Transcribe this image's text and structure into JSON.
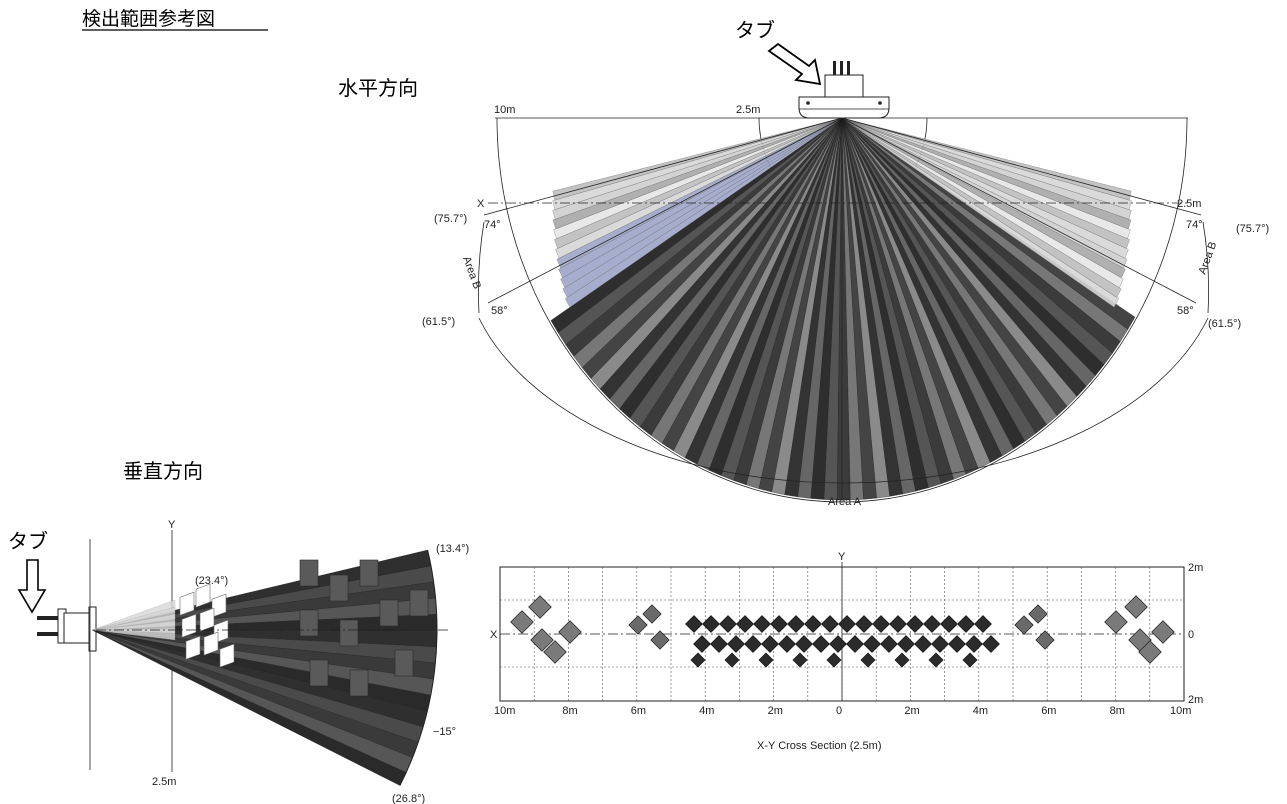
{
  "title": "検出範囲参考図",
  "horizontal": {
    "heading": "水平方向",
    "tab_label": "タブ",
    "range_far": "10m",
    "range_near": "2.5m",
    "range_near_right": "2.5m",
    "x_label": "X",
    "angle_74": "74°",
    "angle_757": "(75.7°)",
    "angle_58": "58°",
    "angle_615": "(61.5°)",
    "area_a": "Area A",
    "area_b": "Area B"
  },
  "vertical": {
    "heading": "垂直方向",
    "tab_label": "タブ",
    "y_label": "Y",
    "x_label": "X",
    "distance": "2.5m",
    "angle_134": "(13.4°)",
    "angle_234": "(23.4°)",
    "angle_m15": "−15°",
    "angle_268": "(26.8°)"
  },
  "cross_section": {
    "caption": "X-Y Cross Section (2.5m)",
    "y_label": "Y",
    "x_label": "X",
    "x_ticks": [
      "10m",
      "8m",
      "6m",
      "4m",
      "2m",
      "0",
      "2m",
      "4m",
      "6m",
      "8m",
      "10m"
    ],
    "y_ticks": [
      "2m",
      "0",
      "2m"
    ]
  },
  "colors": {
    "beam_dark": "#3a3a3a",
    "beam_mid": "#7a7a7a",
    "beam_light": "#bdbdbd",
    "area_b_tint": "#9ea6c8"
  }
}
